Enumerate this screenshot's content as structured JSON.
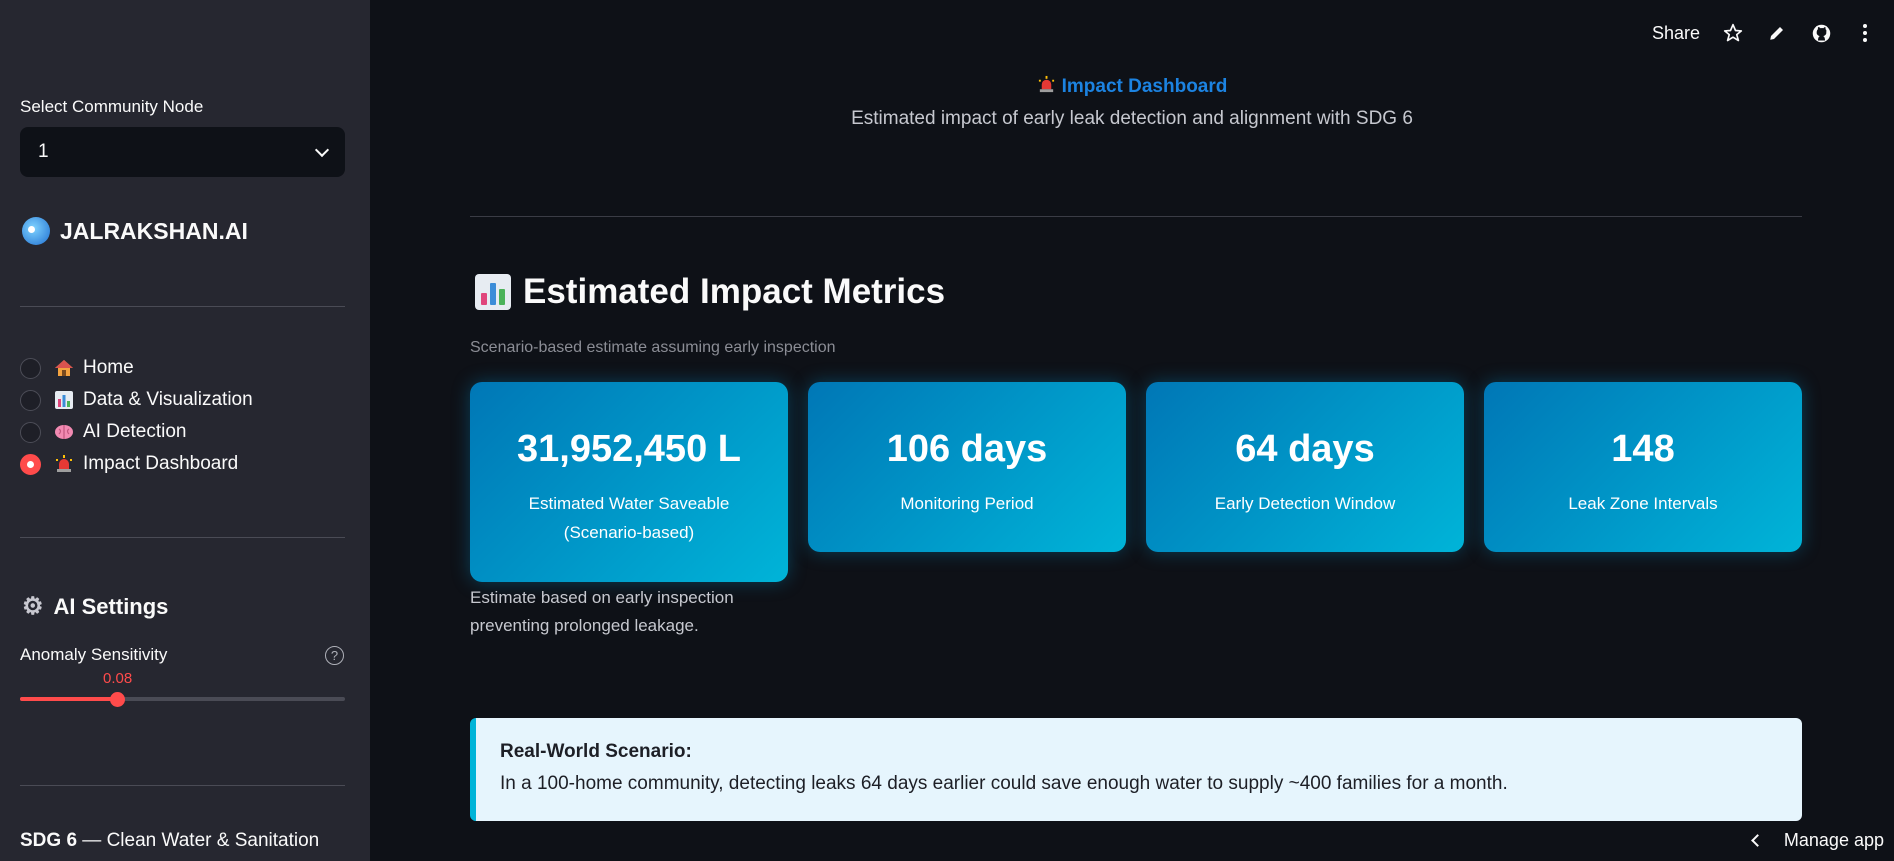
{
  "sidebar": {
    "select_label": "Select Community Node",
    "select_value": "1",
    "brand": "JALRAKSHAN.AI",
    "nav": [
      {
        "label": "Home",
        "icon": "house-icon",
        "selected": false
      },
      {
        "label": "Data & Visualization",
        "icon": "bar-chart-icon",
        "selected": false
      },
      {
        "label": "AI Detection",
        "icon": "brain-icon",
        "selected": false
      },
      {
        "label": "Impact Dashboard",
        "icon": "siren-icon",
        "selected": true
      }
    ],
    "ai_settings_title": "AI Settings",
    "anomaly_label": "Anomaly Sensitivity",
    "anomaly_value": "0.08",
    "sdg_bold": "SDG 6",
    "sdg_rest": " — Clean Water & Sanitation"
  },
  "toolbar": {
    "share": "Share"
  },
  "header": {
    "title": "Impact Dashboard",
    "subtitle": "Estimated impact of early leak detection and alignment with SDG 6"
  },
  "metrics": {
    "title": "Estimated Impact Metrics",
    "caption": "Scenario-based estimate assuming early inspection",
    "cards": [
      {
        "value": "31,952,450 L",
        "label": "Estimated Water Saveable (Scenario-based)"
      },
      {
        "value": "106 days",
        "label": "Monitoring Period"
      },
      {
        "value": "64 days",
        "label": "Early Detection Window"
      },
      {
        "value": "148",
        "label": "Leak Zone Intervals"
      }
    ],
    "note": "Estimate based on early inspection preventing prolonged leakage."
  },
  "scenario": {
    "title": "Real-World Scenario:",
    "text": "In a 100-home community, detecting leaks 64 days earlier could save enough water to supply ~400 families for a month."
  },
  "footer": {
    "manage": "Manage app"
  },
  "colors": {
    "accent": "#ff4b4b",
    "link": "#1c83e1",
    "card_start": "#0077b6",
    "card_end": "#00b4d8"
  }
}
